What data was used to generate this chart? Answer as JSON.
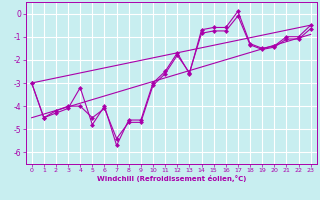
{
  "title": "",
  "xlabel": "Windchill (Refroidissement éolien,°C)",
  "ylabel": "",
  "background_color": "#c8eef0",
  "grid_color": "#ffffff",
  "line_color": "#aa00aa",
  "xlim": [
    -0.5,
    23.5
  ],
  "ylim": [
    -6.5,
    0.5
  ],
  "xticks": [
    0,
    1,
    2,
    3,
    4,
    5,
    6,
    7,
    8,
    9,
    10,
    11,
    12,
    13,
    14,
    15,
    16,
    17,
    18,
    19,
    20,
    21,
    22,
    23
  ],
  "yticks": [
    0,
    -1,
    -2,
    -3,
    -4,
    -5,
    -6
  ],
  "series1_x": [
    0,
    1,
    2,
    3,
    4,
    5,
    6,
    7,
    8,
    9,
    10,
    11,
    12,
    13,
    14,
    15,
    16,
    17,
    18,
    19,
    20,
    21,
    22,
    23
  ],
  "series1_y": [
    -3.0,
    -4.5,
    -4.3,
    -4.1,
    -3.2,
    -4.8,
    -4.0,
    -5.7,
    -4.6,
    -4.6,
    -3.0,
    -2.5,
    -1.7,
    -2.6,
    -0.7,
    -0.6,
    -0.6,
    0.1,
    -1.3,
    -1.5,
    -1.4,
    -1.0,
    -1.0,
    -0.5
  ],
  "series2_x": [
    0,
    1,
    2,
    3,
    4,
    5,
    6,
    7,
    8,
    9,
    10,
    11,
    12,
    13,
    14,
    15,
    16,
    17,
    18,
    19,
    20,
    21,
    22,
    23
  ],
  "series2_y": [
    -3.0,
    -4.5,
    -4.2,
    -4.0,
    -4.0,
    -4.5,
    -4.1,
    -5.4,
    -4.7,
    -4.7,
    -3.1,
    -2.6,
    -1.8,
    -2.55,
    -0.85,
    -0.75,
    -0.75,
    -0.1,
    -1.35,
    -1.55,
    -1.45,
    -1.1,
    -1.1,
    -0.65
  ],
  "line1_x": [
    0,
    23
  ],
  "line1_y": [
    -3.0,
    -0.5
  ],
  "line2_x": [
    0,
    23
  ],
  "line2_y": [
    -4.5,
    -0.9
  ],
  "marker": "D",
  "markersize": 2.5,
  "linewidth": 0.8
}
